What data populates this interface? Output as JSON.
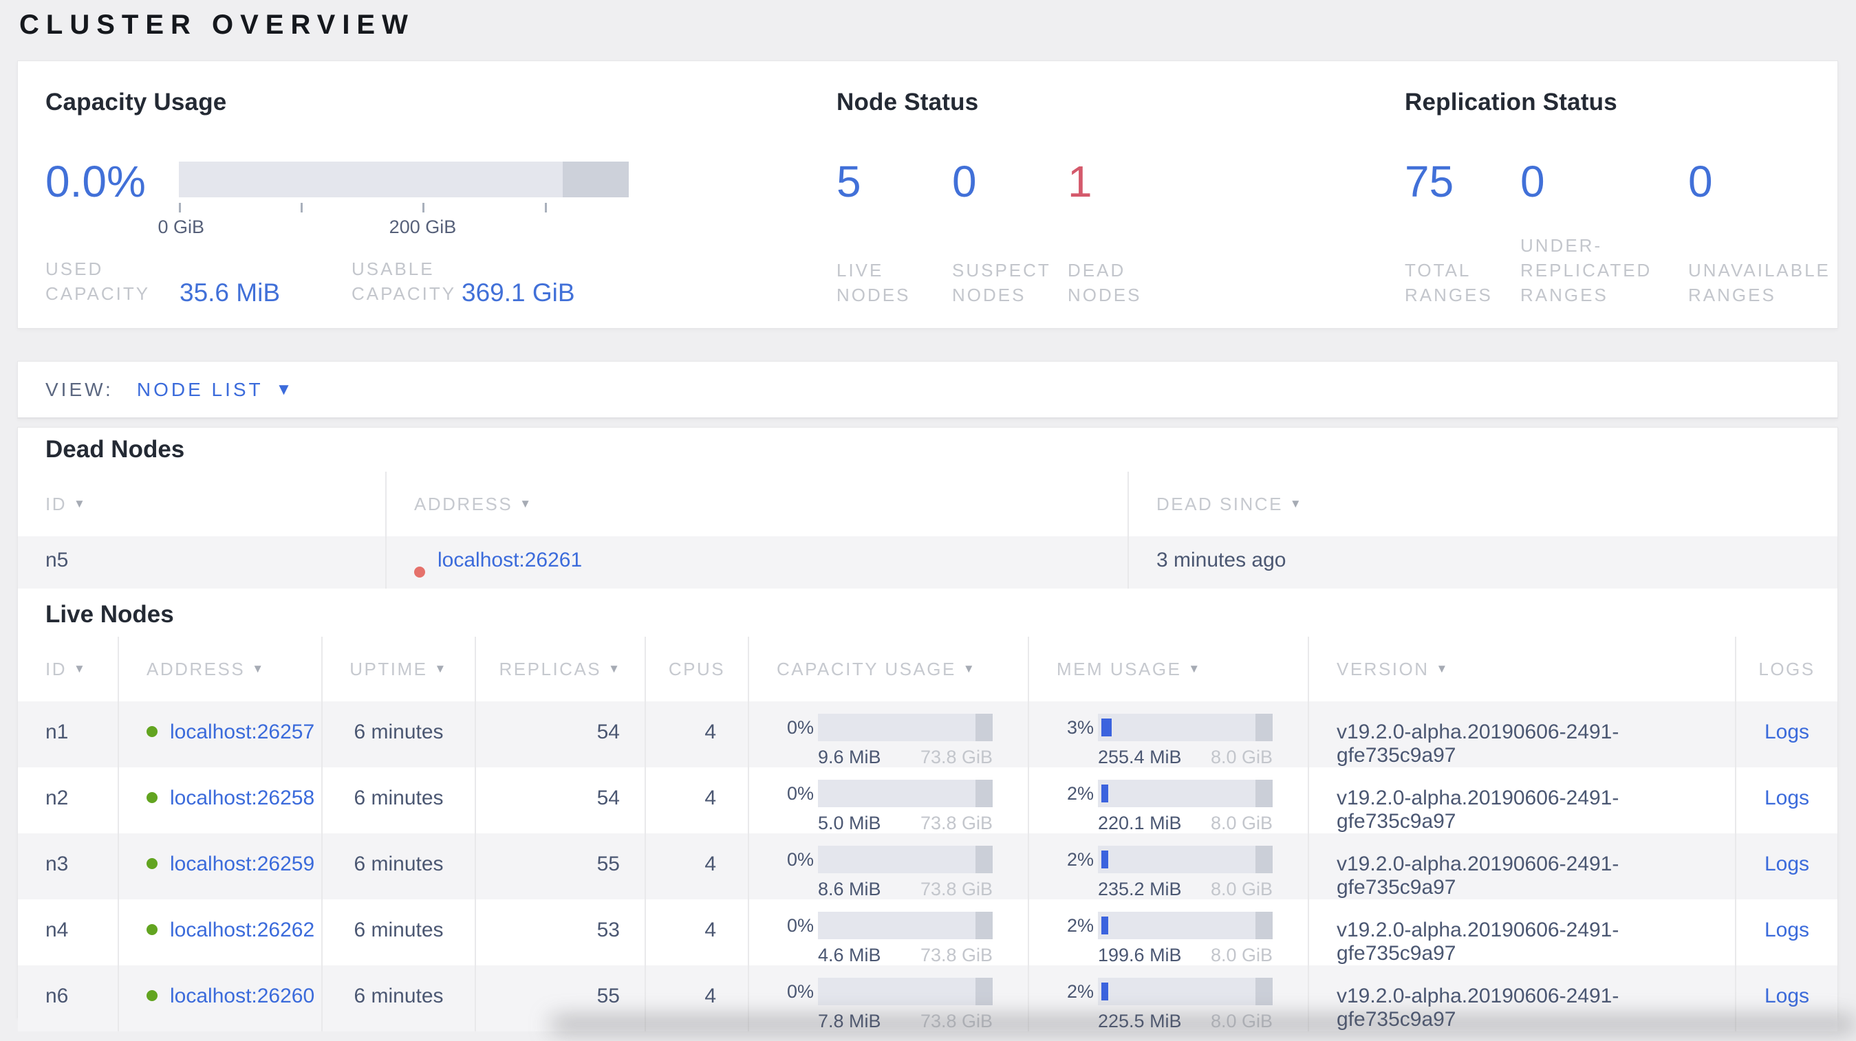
{
  "page": {
    "title": "CLUSTER OVERVIEW"
  },
  "icons": {
    "sort_desc": "▼",
    "dropdown_caret": "▼"
  },
  "colors": {
    "accent_blue": "#4170d8",
    "link_blue": "#3b6bdb",
    "danger_red": "#d4596b",
    "live_green": "#62a420",
    "dead_dot_red": "#e5716b",
    "bar_track": "#e4e6ed",
    "bar_secondary": "#cdd1da",
    "bar_fill_blue": "#3b63de",
    "muted_label": "#c3c6cc",
    "row_stripe": "#f4f4f6"
  },
  "summary": {
    "capacity": {
      "title": "Capacity Usage",
      "percent": "0.0%",
      "bar": {
        "used_pct": 0,
        "secondary_start_pct": 85.3,
        "tick_labels": [
          {
            "text": "0 GiB"
          },
          {
            "text": "200 GiB"
          }
        ]
      },
      "stats": [
        {
          "label": "USED CAPACITY",
          "value": "35.6 MiB"
        },
        {
          "label": "USABLE CAPACITY",
          "value": "369.1 GiB"
        }
      ]
    },
    "node_status": {
      "title": "Node Status",
      "stats": [
        {
          "value": "5",
          "label": "LIVE NODES",
          "state": "live"
        },
        {
          "value": "0",
          "label": "SUSPECT NODES",
          "state": "suspect"
        },
        {
          "value": "1",
          "label": "DEAD NODES",
          "state": "dead"
        }
      ]
    },
    "replication": {
      "title": "Replication Status",
      "stats": [
        {
          "value": "75",
          "label": "TOTAL RANGES"
        },
        {
          "value": "0",
          "label": "UNDER-REPLICATED RANGES"
        },
        {
          "value": "0",
          "label": "UNAVAILABLE RANGES"
        }
      ]
    }
  },
  "view_bar": {
    "label": "VIEW:",
    "selected": "NODE LIST"
  },
  "dead_nodes": {
    "title": "Dead Nodes",
    "headers": {
      "id": "ID",
      "address": "ADDRESS",
      "dead_since": "DEAD SINCE"
    },
    "rows": [
      {
        "id": "n5",
        "address": "localhost:26261",
        "dead_since": "3 minutes ago"
      }
    ]
  },
  "live_nodes": {
    "title": "Live Nodes",
    "headers": {
      "id": "ID",
      "address": "ADDRESS",
      "uptime": "UPTIME",
      "replicas": "REPLICAS",
      "cpus": "CPUS",
      "capacity": "CAPACITY USAGE",
      "memory": "MEM USAGE",
      "version": "VERSION",
      "logs": "LOGS"
    },
    "rows": [
      {
        "id": "n1",
        "address": "localhost:26257",
        "uptime": "6 minutes",
        "replicas": "54",
        "cpus": "4",
        "capacity": {
          "pct_label": "0%",
          "pct": 0,
          "used": "9.6 MiB",
          "total": "73.8 GiB"
        },
        "memory": {
          "pct_label": "3%",
          "pct": 3,
          "used": "255.4 MiB",
          "total": "8.0 GiB"
        },
        "version": "v19.2.0-alpha.20190606-2491-gfe735c9a97",
        "logs": "Logs"
      },
      {
        "id": "n2",
        "address": "localhost:26258",
        "uptime": "6 minutes",
        "replicas": "54",
        "cpus": "4",
        "capacity": {
          "pct_label": "0%",
          "pct": 0,
          "used": "5.0 MiB",
          "total": "73.8 GiB"
        },
        "memory": {
          "pct_label": "2%",
          "pct": 2,
          "used": "220.1 MiB",
          "total": "8.0 GiB"
        },
        "version": "v19.2.0-alpha.20190606-2491-gfe735c9a97",
        "logs": "Logs"
      },
      {
        "id": "n3",
        "address": "localhost:26259",
        "uptime": "6 minutes",
        "replicas": "55",
        "cpus": "4",
        "capacity": {
          "pct_label": "0%",
          "pct": 0,
          "used": "8.6 MiB",
          "total": "73.8 GiB"
        },
        "memory": {
          "pct_label": "2%",
          "pct": 2,
          "used": "235.2 MiB",
          "total": "8.0 GiB"
        },
        "version": "v19.2.0-alpha.20190606-2491-gfe735c9a97",
        "logs": "Logs"
      },
      {
        "id": "n4",
        "address": "localhost:26262",
        "uptime": "6 minutes",
        "replicas": "53",
        "cpus": "4",
        "capacity": {
          "pct_label": "0%",
          "pct": 0,
          "used": "4.6 MiB",
          "total": "73.8 GiB"
        },
        "memory": {
          "pct_label": "2%",
          "pct": 2,
          "used": "199.6 MiB",
          "total": "8.0 GiB"
        },
        "version": "v19.2.0-alpha.20190606-2491-gfe735c9a97",
        "logs": "Logs"
      },
      {
        "id": "n6",
        "address": "localhost:26260",
        "uptime": "6 minutes",
        "replicas": "55",
        "cpus": "4",
        "capacity": {
          "pct_label": "0%",
          "pct": 0,
          "used": "7.8 MiB",
          "total": "73.8 GiB"
        },
        "memory": {
          "pct_label": "2%",
          "pct": 2,
          "used": "225.5 MiB",
          "total": "8.0 GiB"
        },
        "version": "v19.2.0-alpha.20190606-2491-gfe735c9a97",
        "logs": "Logs"
      }
    ]
  }
}
